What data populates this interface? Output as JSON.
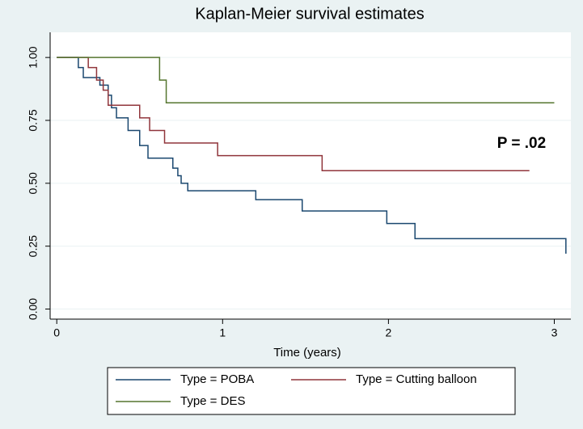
{
  "chart_data": {
    "type": "line",
    "step": true,
    "title": "Kaplan-Meier survival estimates",
    "x_label": "Time (years)",
    "annotation": "P = .02",
    "xlim": [
      -0.04,
      3.1
    ],
    "ylim": [
      -0.04,
      1.1
    ],
    "xticks": [
      0,
      1,
      2,
      3
    ],
    "yticks": [
      {
        "value": 0,
        "label": "0.00"
      },
      {
        "value": 0.25,
        "label": "0.25"
      },
      {
        "value": 0.5,
        "label": "0.50"
      },
      {
        "value": 0.75,
        "label": "0.75"
      },
      {
        "value": 1,
        "label": "1.00"
      }
    ],
    "grid": true,
    "legend": "bottom",
    "series": [
      {
        "name": "Type = POBA",
        "color": "#1a476f",
        "x": [
          0,
          0.13,
          0.16,
          0.26,
          0.31,
          0.33,
          0.36,
          0.43,
          0.5,
          0.55,
          0.7,
          0.73,
          0.75,
          0.79,
          1.2,
          1.48,
          1.99,
          2.16,
          3.07
        ],
        "values": [
          1,
          0.96,
          0.92,
          0.89,
          0.85,
          0.8,
          0.76,
          0.71,
          0.65,
          0.6,
          0.56,
          0.53,
          0.5,
          0.47,
          0.435,
          0.39,
          0.34,
          0.28,
          0.22
        ]
      },
      {
        "name": "Type = Cutting balloon",
        "color": "#90353b",
        "x": [
          0,
          0.19,
          0.24,
          0.28,
          0.31,
          0.5,
          0.56,
          0.65,
          0.97,
          1.6,
          2.85
        ],
        "values": [
          1,
          0.96,
          0.91,
          0.87,
          0.81,
          0.76,
          0.71,
          0.66,
          0.61,
          0.55,
          0.55
        ]
      },
      {
        "name": "Type = DES",
        "color": "#55752f",
        "x": [
          0,
          0.62,
          0.66,
          3.0
        ],
        "values": [
          1,
          0.91,
          0.82,
          0.82
        ]
      }
    ]
  }
}
